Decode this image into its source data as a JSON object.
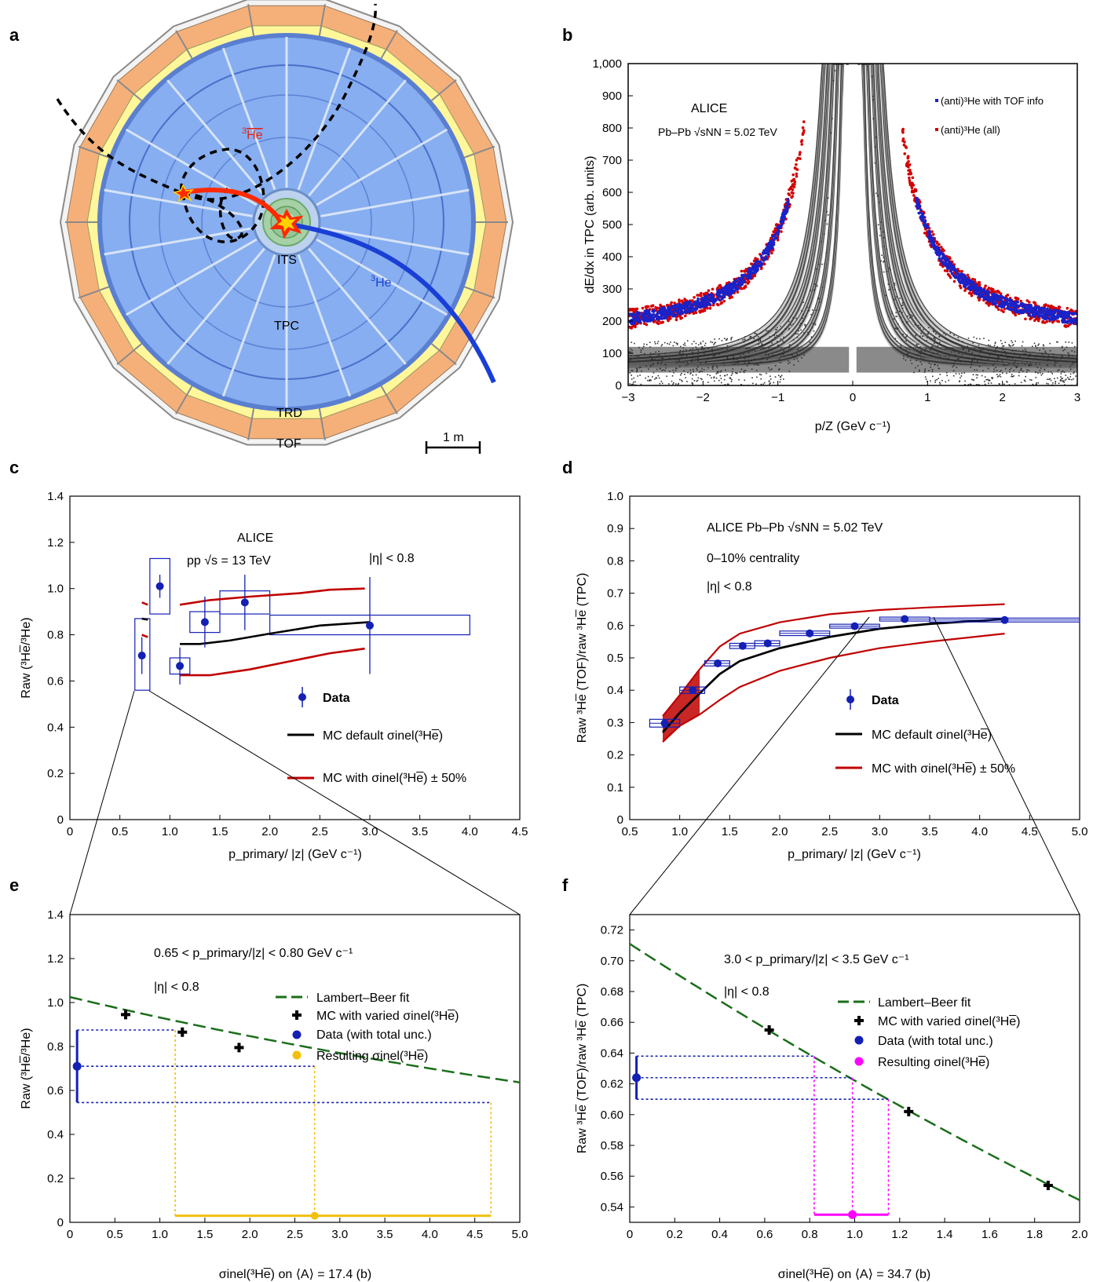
{
  "panel_letters": [
    "a",
    "b",
    "c",
    "d",
    "e",
    "f"
  ],
  "detector": {
    "labels": {
      "its": "ITS",
      "tpc": "TPC",
      "trd": "TRD",
      "tof": "TOF",
      "scale": "1 m"
    },
    "he3_anti_label": "He",
    "he3_label": "He",
    "he3_sup": "3",
    "colors": {
      "he3_anti": "#ff2a00",
      "he3": "#1a3fd6",
      "tpc": "#7ea9ea",
      "trd": "#fff79a",
      "tof": "#f5b07a"
    }
  },
  "chart_data": [
    {
      "id": "b",
      "type": "scatter",
      "title": "ALICE",
      "subtitle": "Pb–Pb √sNN = 5.02 TeV",
      "xlabel": "p/Z (GeV c⁻¹)",
      "ylabel": "dE/dx in TPC (arb. units)",
      "xlim": [
        -3,
        3
      ],
      "ylim": [
        0,
        1000
      ],
      "xticks": [
        "−3",
        "−2",
        "−1",
        "0",
        "1",
        "2",
        "3"
      ],
      "yticks": [
        "0",
        "100",
        "200",
        "300",
        "400",
        "500",
        "600",
        "700",
        "800",
        "900",
        "1,000"
      ],
      "legend": [
        {
          "label": "(anti)³He with TOF info",
          "color": "#1a22c8"
        },
        {
          "label": "(anti)³He (all)",
          "color": "#d40000"
        }
      ]
    },
    {
      "id": "c",
      "type": "scatter",
      "title": "ALICE",
      "annotations": [
        "pp √s = 13 TeV",
        "|η| < 0.8"
      ],
      "xlabel": "p_primary/ |z| (GeV c⁻¹)",
      "ylabel": "Raw (³He̅/³He)",
      "xlim": [
        0,
        4.5
      ],
      "ylim": [
        0,
        1.4
      ],
      "xticks": [
        "0",
        "0.5",
        "1.0",
        "1.5",
        "2.0",
        "2.5",
        "3.0",
        "3.5",
        "4.0",
        "4.5"
      ],
      "yticks": [
        "0",
        "0.2",
        "0.4",
        "0.6",
        "0.8",
        "1.0",
        "1.2",
        "1.4"
      ],
      "data": {
        "x": [
          0.72,
          0.9,
          1.1,
          1.35,
          1.75,
          3.0
        ],
        "y": [
          0.71,
          1.01,
          0.665,
          0.855,
          0.94,
          0.84
        ],
        "yerr": [
          0.08,
          0.05,
          0.08,
          0.11,
          0.12,
          0.21
        ],
        "box_x": [
          [
            0.65,
            0.8
          ],
          [
            0.8,
            1.0
          ],
          [
            1.0,
            1.2
          ],
          [
            1.2,
            1.5
          ],
          [
            1.5,
            2.0
          ],
          [
            2.0,
            4.0
          ]
        ],
        "box_y": [
          [
            0.56,
            0.87
          ],
          [
            0.89,
            1.13
          ],
          [
            0.63,
            0.7
          ],
          [
            0.81,
            0.9
          ],
          [
            0.89,
            0.99
          ],
          [
            0.8,
            0.885
          ]
        ]
      },
      "series": [
        {
          "name": "MC default σinel(³He̅)",
          "color": "#000000",
          "segments": [
            [
              [
                0.72,
                0.87
              ],
              [
                0.78,
                0.865
              ]
            ],
            [
              [
                1.1,
                0.76
              ],
              [
                1.3,
                0.76
              ],
              [
                1.6,
                0.775
              ],
              [
                2.0,
                0.805
              ],
              [
                2.5,
                0.84
              ],
              [
                3.0,
                0.855
              ]
            ]
          ]
        },
        {
          "name": "MC with σinel(³He̅) ± 50%",
          "color": "#c00000",
          "segments": [
            [
              [
                0.72,
                0.94
              ],
              [
                0.78,
                0.93
              ]
            ],
            [
              [
                0.72,
                0.8
              ],
              [
                0.78,
                0.79
              ]
            ],
            [
              [
                1.1,
                0.93
              ],
              [
                1.4,
                0.95
              ],
              [
                1.8,
                0.965
              ],
              [
                2.3,
                0.98
              ],
              [
                2.6,
                0.995
              ],
              [
                2.95,
                1.0
              ]
            ],
            [
              [
                1.1,
                0.625
              ],
              [
                1.4,
                0.625
              ],
              [
                1.8,
                0.65
              ],
              [
                2.2,
                0.685
              ],
              [
                2.6,
                0.72
              ],
              [
                2.95,
                0.74
              ]
            ]
          ]
        }
      ],
      "legend": [
        "Data",
        "MC default σinel(³He̅)",
        "MC with σinel(³He̅) ± 50%"
      ]
    },
    {
      "id": "d",
      "type": "scatter",
      "title": "ALICE Pb–Pb √sNN = 5.02 TeV",
      "annotations": [
        "0–10% centrality",
        "|η| < 0.8"
      ],
      "xlabel": "p_primary/ |z| (GeV c⁻¹)",
      "ylabel": "Raw ³He̅ (TOF)/raw ³He̅ (TPC)",
      "xlim": [
        0.5,
        5.0
      ],
      "ylim": [
        0,
        1.0
      ],
      "xticks": [
        "0.5",
        "1.0",
        "1.5",
        "2.0",
        "2.5",
        "3.0",
        "3.5",
        "4.0",
        "4.5",
        "5.0"
      ],
      "yticks": [
        "0",
        "0.1",
        "0.2",
        "0.3",
        "0.4",
        "0.5",
        "0.6",
        "0.7",
        "0.8",
        "0.9",
        "1.0"
      ],
      "data": {
        "x": [
          0.85,
          1.13,
          1.38,
          1.63,
          1.88,
          2.3,
          2.75,
          3.25,
          4.25
        ],
        "y": [
          0.298,
          0.4,
          0.483,
          0.537,
          0.545,
          0.576,
          0.598,
          0.62,
          0.617
        ],
        "box_x": [
          [
            0.7,
            1.0
          ],
          [
            1.0,
            1.25
          ],
          [
            1.25,
            1.5
          ],
          [
            1.5,
            1.75
          ],
          [
            1.75,
            2.0
          ],
          [
            2.0,
            2.5
          ],
          [
            2.5,
            3.0
          ],
          [
            3.0,
            3.5
          ],
          [
            3.5,
            5.0
          ]
        ],
        "box_h": [
          0.024,
          0.02,
          0.016,
          0.016,
          0.016,
          0.014,
          0.012,
          0.012,
          0.012
        ]
      },
      "series": [
        {
          "name": "MC default σinel(³He̅)",
          "color": "#000000",
          "points": [
            [
              0.83,
              0.27
            ],
            [
              1.0,
              0.33
            ],
            [
              1.2,
              0.39
            ],
            [
              1.4,
              0.45
            ],
            [
              1.6,
              0.49
            ],
            [
              2.0,
              0.53
            ],
            [
              2.5,
              0.565
            ],
            [
              3.0,
              0.59
            ],
            [
              3.5,
              0.605
            ],
            [
              4.25,
              0.62
            ]
          ]
        },
        {
          "name": "MC with σinel(³He̅) ± 50%",
          "color": "#c00000",
          "upper": [
            [
              0.83,
              0.32
            ],
            [
              1.0,
              0.385
            ],
            [
              1.2,
              0.465
            ],
            [
              1.4,
              0.535
            ],
            [
              1.6,
              0.575
            ],
            [
              2.0,
              0.61
            ],
            [
              2.5,
              0.635
            ],
            [
              3.0,
              0.648
            ],
            [
              3.5,
              0.656
            ],
            [
              4.25,
              0.666
            ]
          ],
          "lower": [
            [
              0.83,
              0.24
            ],
            [
              1.0,
              0.29
            ],
            [
              1.2,
              0.325
            ],
            [
              1.4,
              0.37
            ],
            [
              1.6,
              0.41
            ],
            [
              2.0,
              0.46
            ],
            [
              2.5,
              0.5
            ],
            [
              3.0,
              0.53
            ],
            [
              3.5,
              0.55
            ],
            [
              4.25,
              0.575
            ]
          ]
        }
      ],
      "legend": [
        "Data",
        "MC default σinel(³He̅)",
        "MC with σinel(³He̅) ± 50%"
      ]
    },
    {
      "id": "e",
      "type": "scatter",
      "annotations": [
        "0.65 < p_primary/|z| < 0.80 GeV c⁻¹",
        "|η| < 0.8"
      ],
      "xlabel": "σinel(³He̅) on ⟨A⟩ = 17.4 (b)",
      "ylabel": "Raw (³He̅/³He)",
      "xlim": [
        0,
        5.0
      ],
      "ylim": [
        0,
        1.4
      ],
      "xticks": [
        "0",
        "0.5",
        "1.0",
        "1.5",
        "2.0",
        "2.5",
        "3.0",
        "3.5",
        "4.0",
        "4.5",
        "5.0"
      ],
      "yticks": [
        "0",
        "0.2",
        "0.4",
        "0.6",
        "0.8",
        "1.0",
        "1.2",
        "1.4"
      ],
      "fit": {
        "name": "Lambert–Beer fit",
        "color": "#1a6e1a",
        "y0": 1.025,
        "slope": -0.1
      },
      "mc_points": {
        "name": "MC with varied σinel(³He̅)",
        "x": [
          0.62,
          1.25,
          1.88
        ],
        "y": [
          0.945,
          0.865,
          0.795
        ]
      },
      "data": {
        "name": "Data (with total unc.)",
        "x": 0.08,
        "y": 0.71,
        "ylow": 0.545,
        "yhigh": 0.875
      },
      "result": {
        "name": "Resulting σinel(³He̅)",
        "x": 2.72,
        "xlow": 1.17,
        "xhigh": 4.68,
        "y": 0.03,
        "color": "#f2c00c"
      }
    },
    {
      "id": "f",
      "type": "scatter",
      "annotations": [
        "3.0 < p_primary/|z| < 3.5 GeV c⁻¹",
        "|η| < 0.8"
      ],
      "xlabel": "σinel(³He̅) on ⟨A⟩ = 34.7 (b)",
      "ylabel": "Raw ³He̅ (TOF)/raw ³He̅ (TPC)",
      "xlim": [
        0,
        2.0
      ],
      "ylim": [
        0.53,
        0.73
      ],
      "xticks": [
        "0",
        "0.2",
        "0.4",
        "0.6",
        "0.8",
        "1.0",
        "1.2",
        "1.4",
        "1.6",
        "1.8",
        "2.0"
      ],
      "yticks": [
        "0.54",
        "0.56",
        "0.58",
        "0.60",
        "0.62",
        "0.64",
        "0.66",
        "0.68",
        "0.70",
        "0.72"
      ],
      "fit": {
        "name": "Lambert–Beer fit",
        "color": "#1a6e1a",
        "y0": 0.711,
        "k": 0.1335
      },
      "mc_points": {
        "name": "MC with varied σinel(³He̅)",
        "x": [
          0.62,
          1.24,
          1.86
        ],
        "y": [
          0.655,
          0.602,
          0.554
        ]
      },
      "data": {
        "name": "Data (with total unc.)",
        "x": 0.03,
        "y": 0.624,
        "ylow": 0.61,
        "yhigh": 0.638
      },
      "result": {
        "name": "Resulting σinel(³He̅)",
        "x": 0.99,
        "xlow": 0.82,
        "xhigh": 1.15,
        "y": 0.535,
        "color": "#ff00ff"
      }
    }
  ]
}
